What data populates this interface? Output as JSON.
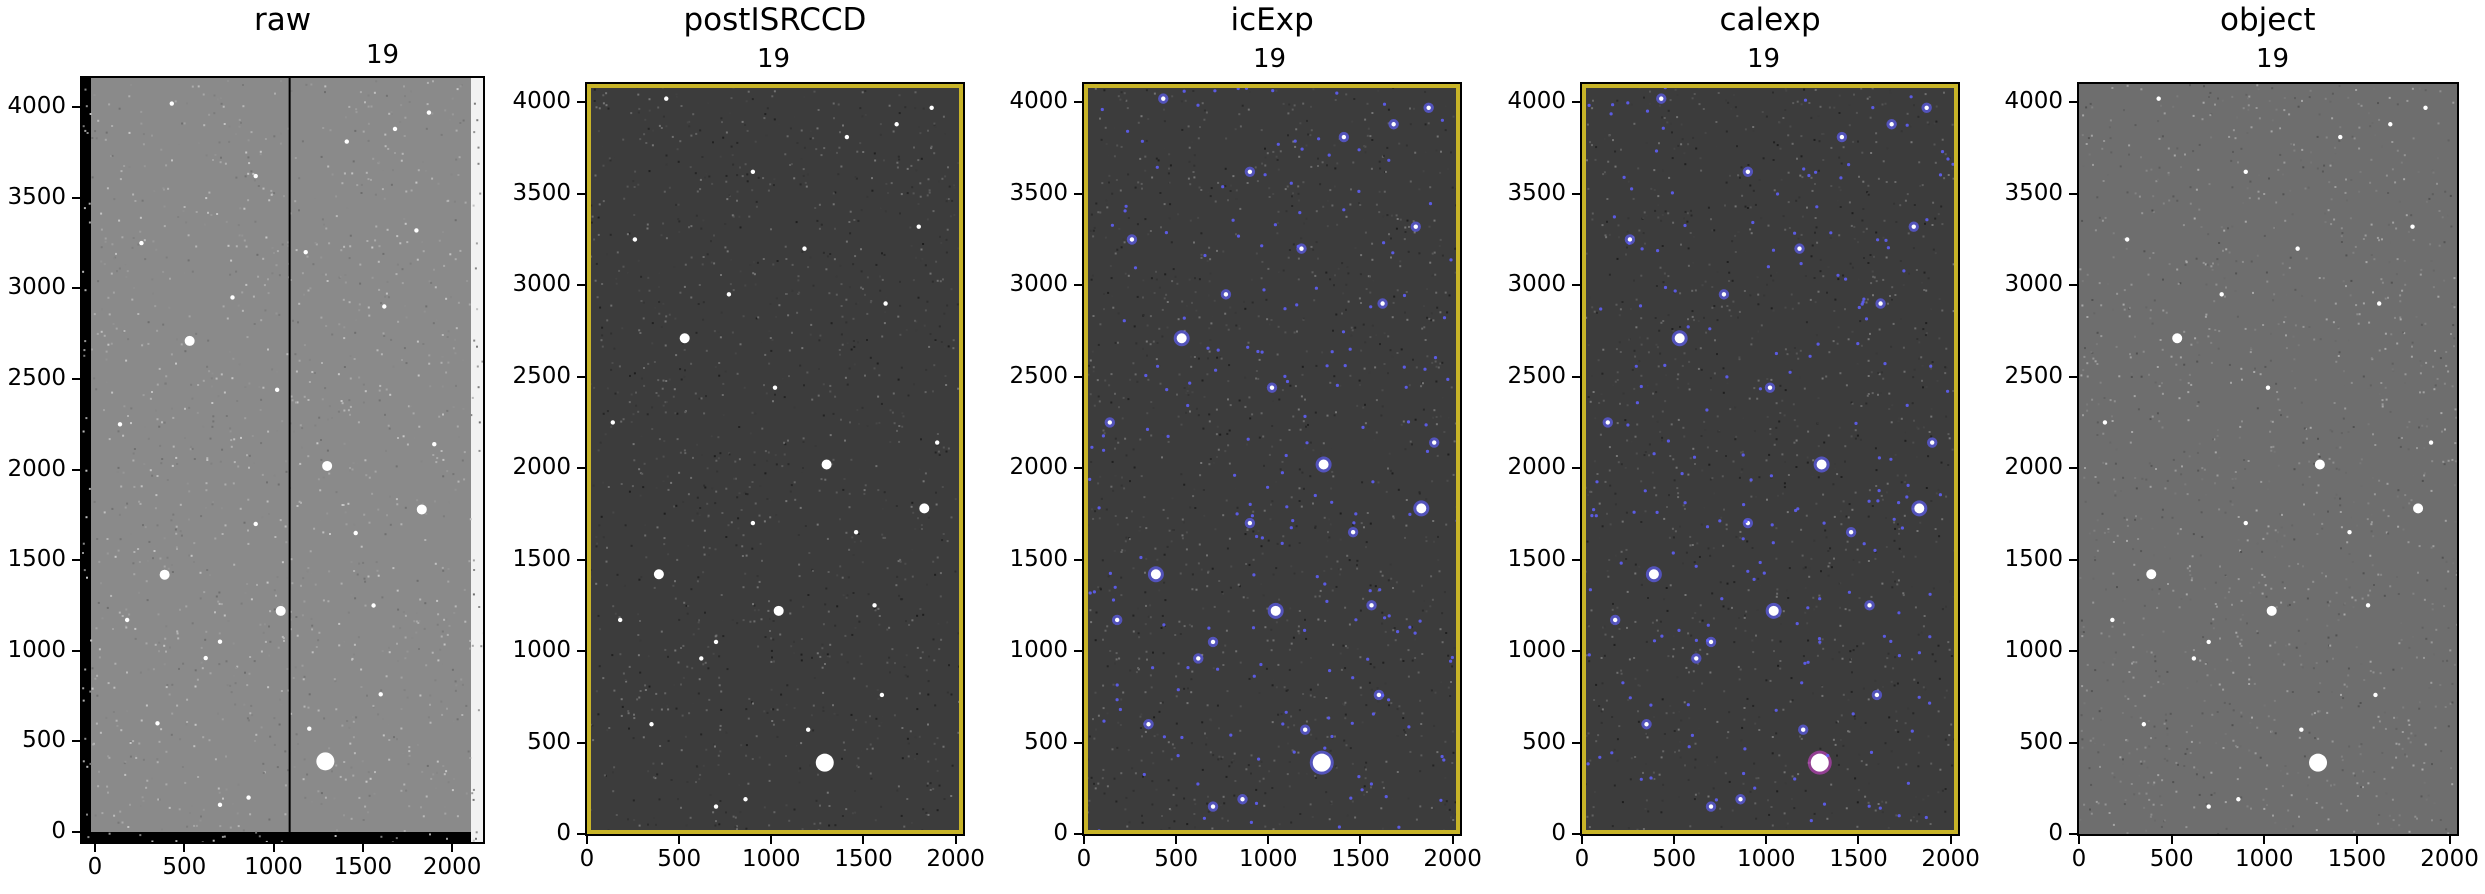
{
  "panels": [
    {
      "id": "raw",
      "title": "raw",
      "detector": "19",
      "overlay": "none",
      "frame_style": "raw"
    },
    {
      "id": "postISRCCD",
      "title": "postISRCCD",
      "detector": "19",
      "overlay": "none",
      "frame_style": "yellow"
    },
    {
      "id": "icExp",
      "title": "icExp",
      "detector": "19",
      "overlay": "blue",
      "frame_style": "yellow"
    },
    {
      "id": "calexp",
      "title": "calexp",
      "detector": "19",
      "overlay": "blue-magenta",
      "frame_style": "yellow"
    },
    {
      "id": "object",
      "title": "object",
      "detector": "19",
      "overlay": "none",
      "frame_style": "plain"
    }
  ],
  "axes": {
    "yticks": [
      "0",
      "500",
      "1000",
      "1500",
      "2000",
      "2500",
      "3000",
      "3500",
      "4000"
    ],
    "xticks": [
      "0",
      "500",
      "1000",
      "1500",
      "2000"
    ],
    "ylim": [
      0,
      4100
    ],
    "xlim": [
      0,
      2040
    ]
  },
  "colors": {
    "mask_border": "#c8b428",
    "detection_mask": "#6060ff",
    "saturated_mask": "#c040c0",
    "sky_background": "#3c3c3c",
    "raw_background": "#8a8a8a"
  },
  "stars": [
    {
      "x": 1290,
      "y": 390,
      "size": "large"
    },
    {
      "x": 390,
      "y": 1420,
      "size": "medium"
    },
    {
      "x": 1040,
      "y": 1220,
      "size": "medium"
    },
    {
      "x": 1300,
      "y": 2020,
      "size": "medium"
    },
    {
      "x": 1830,
      "y": 1780,
      "size": "medium"
    },
    {
      "x": 530,
      "y": 2710,
      "size": "medium"
    },
    {
      "x": 770,
      "y": 2950,
      "size": "small"
    },
    {
      "x": 1410,
      "y": 3810,
      "size": "small"
    },
    {
      "x": 1800,
      "y": 3320,
      "size": "small"
    },
    {
      "x": 860,
      "y": 190,
      "size": "small"
    },
    {
      "x": 700,
      "y": 150,
      "size": "small"
    },
    {
      "x": 1900,
      "y": 2140,
      "size": "small"
    },
    {
      "x": 430,
      "y": 4020,
      "size": "small"
    },
    {
      "x": 1680,
      "y": 3880,
      "size": "small"
    },
    {
      "x": 1020,
      "y": 2440,
      "size": "small"
    },
    {
      "x": 700,
      "y": 1050,
      "size": "small"
    },
    {
      "x": 620,
      "y": 960,
      "size": "small"
    },
    {
      "x": 1560,
      "y": 1250,
      "size": "small"
    },
    {
      "x": 180,
      "y": 1170,
      "size": "small"
    },
    {
      "x": 1200,
      "y": 570,
      "size": "small"
    },
    {
      "x": 1620,
      "y": 2900,
      "size": "small"
    },
    {
      "x": 260,
      "y": 3250,
      "size": "small"
    },
    {
      "x": 900,
      "y": 3620,
      "size": "small"
    },
    {
      "x": 1870,
      "y": 3970,
      "size": "small"
    },
    {
      "x": 1600,
      "y": 760,
      "size": "small"
    },
    {
      "x": 900,
      "y": 1700,
      "size": "small"
    },
    {
      "x": 140,
      "y": 2250,
      "size": "small"
    },
    {
      "x": 1180,
      "y": 3200,
      "size": "small"
    },
    {
      "x": 350,
      "y": 600,
      "size": "small"
    },
    {
      "x": 1460,
      "y": 1650,
      "size": "small"
    }
  ]
}
